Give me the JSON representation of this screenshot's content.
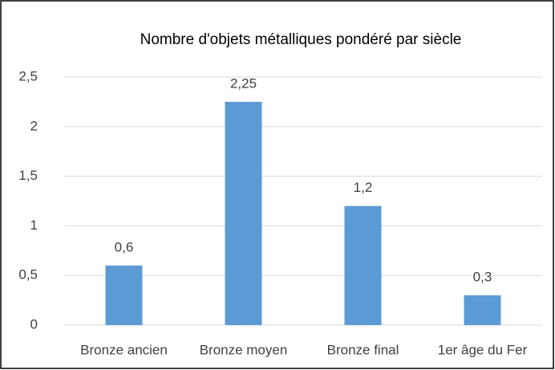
{
  "chart_data": {
    "type": "bar",
    "title": "Nombre d'objets métalliques pondéré par siècle",
    "categories": [
      "Bronze ancien",
      "Bronze moyen",
      "Bronze final",
      "1er âge du Fer"
    ],
    "values": [
      0.6,
      2.25,
      1.2,
      0.3
    ],
    "value_labels": [
      "0,6",
      "2,25",
      "1,2",
      "0,3"
    ],
    "color": "#5b9bd5",
    "ylim": [
      0,
      2.5
    ],
    "yticks": [
      0,
      {
        "value": 0.5,
        "label": "0,5"
      },
      1,
      {
        "value": 1.5,
        "label": "1,5"
      },
      2,
      {
        "value": 2.5,
        "label": "2,5"
      }
    ],
    "grid": true
  }
}
